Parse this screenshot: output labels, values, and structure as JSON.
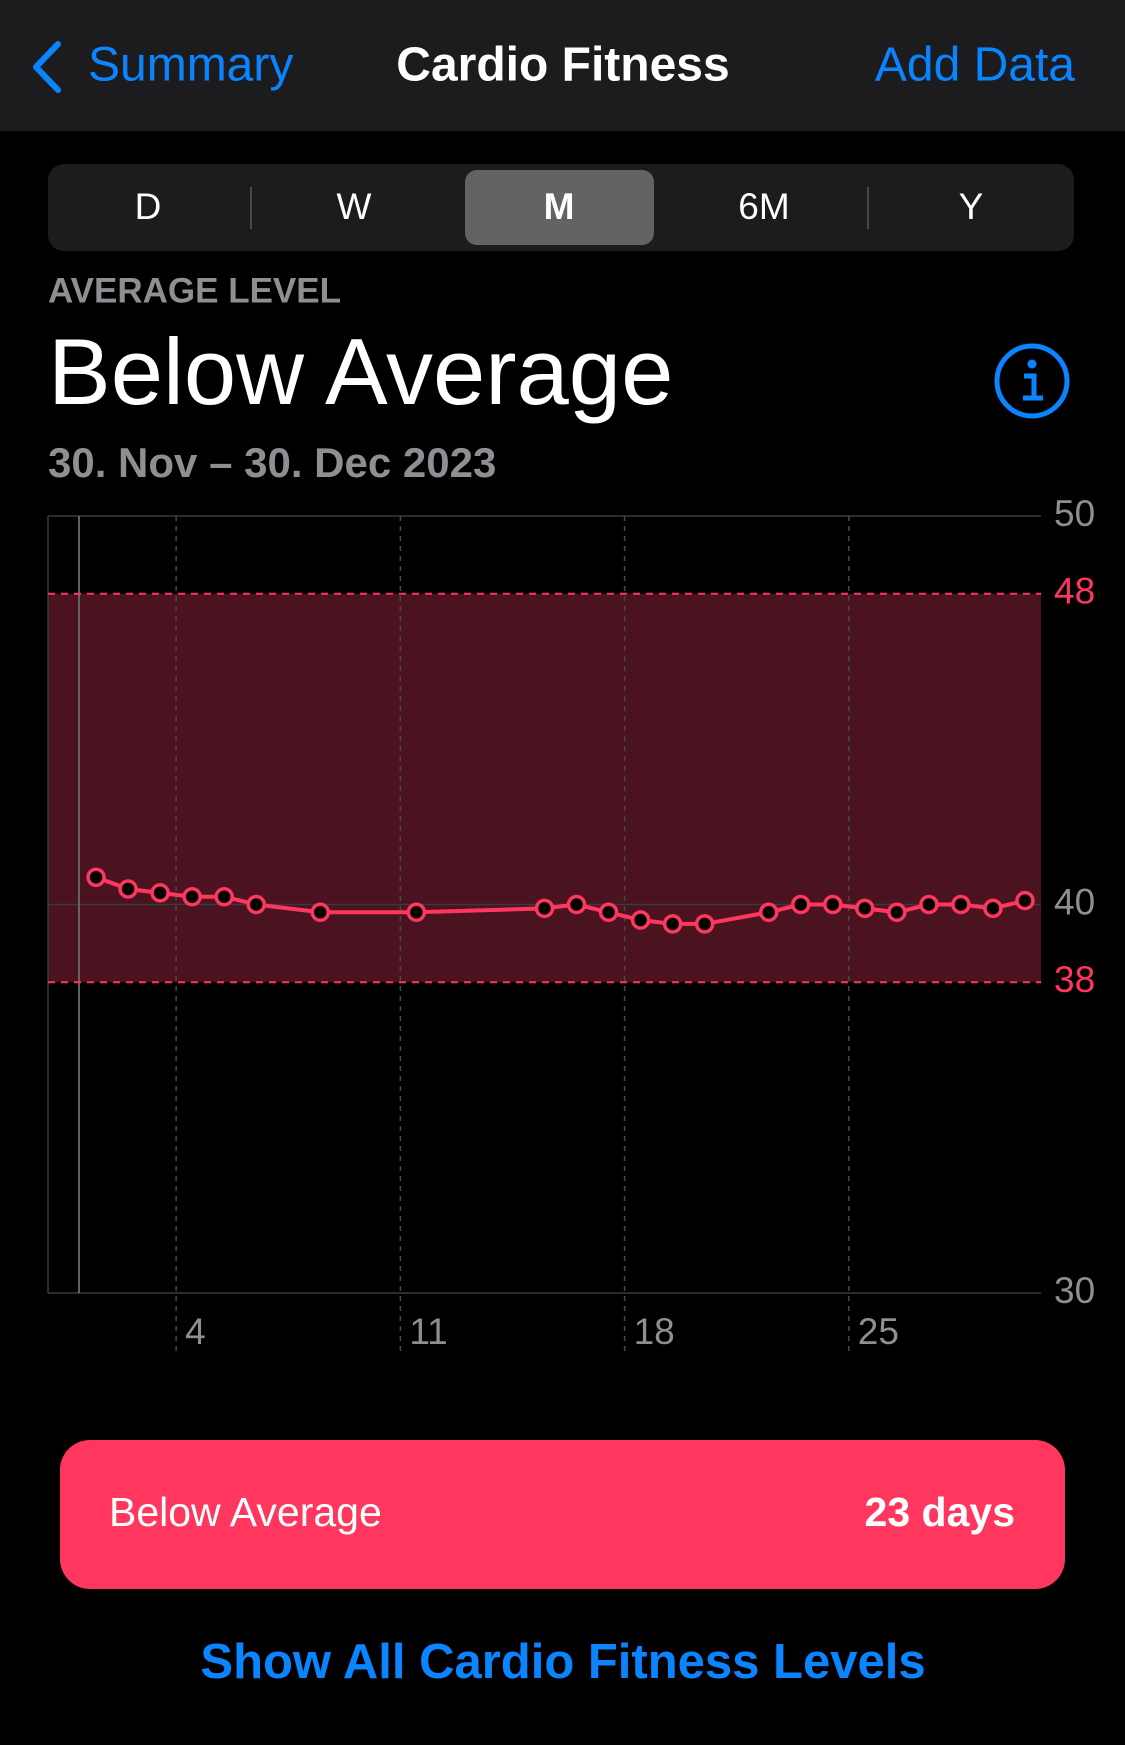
{
  "nav": {
    "back": "Summary",
    "title": "Cardio Fitness",
    "action": "Add Data"
  },
  "segments": {
    "items": [
      "D",
      "W",
      "M",
      "6M",
      "Y"
    ],
    "selected": 2
  },
  "header": {
    "label": "AVERAGE LEVEL",
    "level": "Below Average",
    "dates": "30. Nov – 30. Dec 2023"
  },
  "chart_data": {
    "type": "line",
    "color": "#ff375f",
    "x": [
      1.5,
      2.5,
      3.5,
      4.5,
      5.5,
      6.5,
      8.5,
      11.5,
      15.5,
      16.5,
      17.5,
      18.5,
      19.5,
      20.5,
      22.5,
      23.5,
      24.5,
      25.5,
      26.5,
      27.5,
      28.5,
      29.5,
      30.5
    ],
    "values": [
      40.7,
      40.4,
      40.3,
      40.2,
      40.2,
      40.0,
      39.8,
      39.8,
      39.9,
      40.0,
      39.8,
      39.6,
      39.5,
      39.5,
      39.8,
      40.0,
      40.0,
      39.9,
      39.8,
      40.0,
      40.0,
      39.9,
      40.1
    ],
    "xlim": [
      0,
      31
    ],
    "xticks": [
      4,
      11,
      18,
      25
    ],
    "ylim": [
      30,
      50
    ],
    "yticks": [
      30,
      40,
      50
    ],
    "range": [
      38,
      48
    ],
    "range_color": "#4b131f"
  },
  "card": {
    "level": "Below Average",
    "days": "23 days"
  },
  "link": "Show All Cardio Fitness Levels"
}
